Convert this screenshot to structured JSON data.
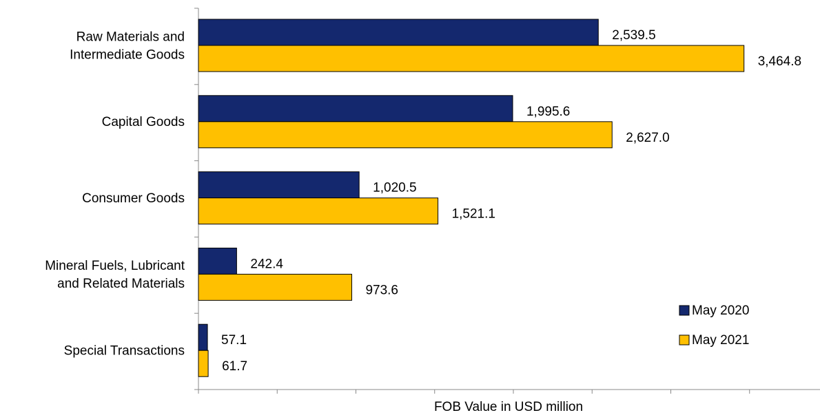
{
  "chart_data": {
    "type": "hbar",
    "x_label": "FOB  Value in USD million",
    "categories": [
      [
        "Raw Materials and",
        "Intermediate Goods"
      ],
      [
        "Capital Goods"
      ],
      [
        "Consumer Goods"
      ],
      [
        "Mineral Fuels, Lubricant",
        "and Related Materials"
      ],
      [
        "Special Transactions"
      ]
    ],
    "series": [
      {
        "name": "May 2020",
        "color": "#14286e",
        "values": [
          2539.5,
          1995.6,
          1020.5,
          242.4,
          57.1
        ],
        "value_labels": [
          "2,539.5",
          "1,995.6",
          "1,020.5",
          "242.4",
          "57.1"
        ]
      },
      {
        "name": "May 2021",
        "color": "#ffc000",
        "values": [
          3464.8,
          2627.0,
          1521.1,
          973.6,
          61.7
        ],
        "value_labels": [
          "3,464.8",
          "2,627.0",
          "1,521.1",
          "973.6",
          "61.7"
        ]
      }
    ],
    "xlim": [
      0,
      4000
    ],
    "xticks": [
      0,
      500,
      1000,
      1500,
      2000,
      2500,
      3000,
      3500
    ],
    "legend": "lower right"
  }
}
